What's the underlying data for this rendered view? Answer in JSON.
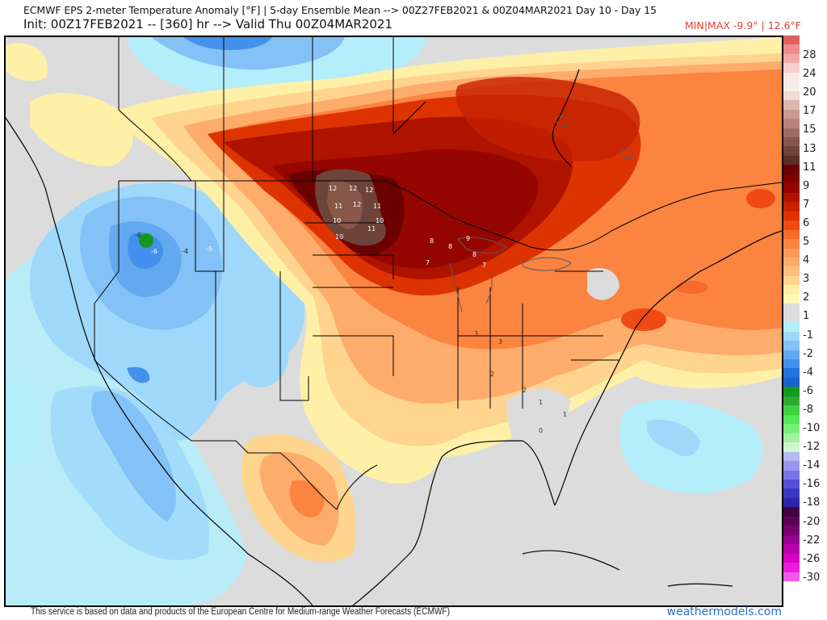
{
  "header": {
    "title_line1": "ECMWF EPS 2-meter Temperature Anomaly [°F] | 5-day Ensemble Mean --> 00Z27FEB2021 & 00Z04MAR2021   Day 10 - Day 15",
    "title_line2": "Init: 00Z17FEB2021 -- [360] hr --> Valid Thu 00Z04MAR2021",
    "minmax": "MIN|MAX -9.9° | 12.6°F"
  },
  "map": {
    "variable": "2-meter Temperature Anomaly",
    "units": "°F",
    "model": "ECMWF EPS",
    "period": "5-day Ensemble Mean",
    "init": "00Z17FEB2021",
    "forecast_hour": "360",
    "valid": "Thu 00Z04MAR2021",
    "range_start": "00Z27FEB2021",
    "range_end": "00Z04MAR2021",
    "days": "Day 10 - Day 15",
    "min": -9.9,
    "max": 12.6,
    "colors": {
      "land_neutral": "#dcdcdc",
      "max_marker": "#6e4a42",
      "min_marker": "#1a9a1a"
    },
    "sample_values": {
      "north_dakota_maximum": [
        12,
        12,
        12,
        12,
        11,
        11,
        11,
        10,
        10,
        10
      ],
      "great_lakes": [
        8,
        8,
        8,
        7,
        7,
        9
      ],
      "idaho_minimum": [
        -6,
        -6,
        -5,
        -4
      ],
      "southeast": [
        3,
        3,
        2,
        2,
        1,
        1,
        0
      ]
    }
  },
  "legend": {
    "ticks": [
      "28",
      "24",
      "20",
      "17",
      "15",
      "13",
      "11",
      "9",
      "7",
      "6",
      "5",
      "4",
      "3",
      "2",
      "1",
      "-1",
      "-2",
      "-4",
      "-6",
      "-8",
      "-10",
      "-12",
      "-14",
      "-16",
      "-18",
      "-20",
      "-22",
      "-26",
      "-30"
    ],
    "swatches": [
      "#e06060",
      "#ec8c8c",
      "#f5aaaa",
      "#f7d0ca",
      "#f9e9e6",
      "#f7ece8",
      "#efdcd2",
      "#dcb7ab",
      "#c99b90",
      "#b88478",
      "#9a6e62",
      "#87574a",
      "#6e443a",
      "#5a2f26",
      "#6b0000",
      "#7e0000",
      "#950600",
      "#ae1300",
      "#c62100",
      "#dd3300",
      "#f04a14",
      "#f76a2a",
      "#fb8441",
      "#fd9a58",
      "#feac6c",
      "#ffbf80",
      "#ffd48f",
      "#fff0a8",
      "#fffbb6",
      "#dcdcdc",
      "#dcdcdc",
      "#b4eefa",
      "#9fd8fa",
      "#84c1f6",
      "#62a9f0",
      "#4391ec",
      "#2673e0",
      "#1b61d1",
      "#149a1a",
      "#2daa2d",
      "#3fd13f",
      "#55e655",
      "#7aee7a",
      "#a0f2a0",
      "#cff7cf",
      "#b8b8f6",
      "#9a93f0",
      "#7877e8",
      "#5451d6",
      "#3c37c2",
      "#2c27a8",
      "#43003f",
      "#5c0055",
      "#7a006f",
      "#990090",
      "#b800aa",
      "#d600c6",
      "#ee1ade",
      "#f15ae8"
    ]
  },
  "footer": {
    "credit": "This service is based on data and products of the European Centre for Medium-range Weather Forecasts (ECMWF)",
    "brand": "weathermodels.com"
  }
}
